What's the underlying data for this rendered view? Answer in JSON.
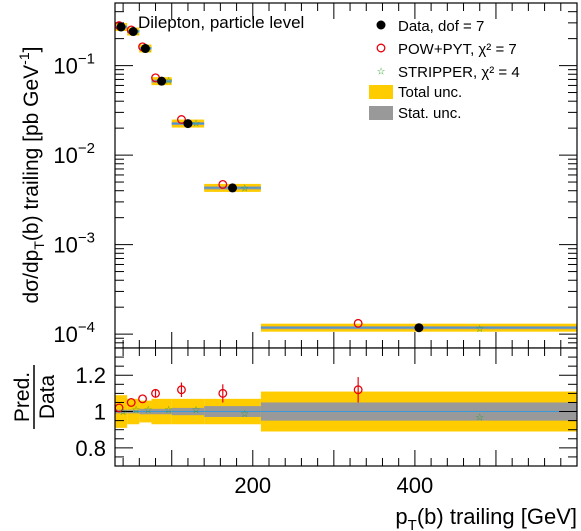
{
  "chart_data": {
    "type": "scatter",
    "title": "Dilepton, particle level",
    "bins": [
      {
        "lo": 30,
        "hi": 45
      },
      {
        "lo": 45,
        "hi": 60
      },
      {
        "lo": 60,
        "hi": 75
      },
      {
        "lo": 75,
        "hi": 100
      },
      {
        "lo": 100,
        "hi": 140
      },
      {
        "lo": 140,
        "hi": 210
      },
      {
        "lo": 210,
        "hi": 600
      }
    ],
    "top_panel": {
      "ylabel": "dσ/dp_T(b) trailing [pb GeV^-1]",
      "yscale": "log",
      "ylim": [
        7e-05,
        0.5
      ],
      "yticks": [
        {
          "value": 0.1,
          "base": "10",
          "exp": "−1"
        },
        {
          "value": 0.01,
          "base": "10",
          "exp": "−2"
        },
        {
          "value": 0.001,
          "base": "10",
          "exp": "−3"
        },
        {
          "value": 0.0001,
          "base": "10",
          "exp": "−4"
        }
      ],
      "series": [
        {
          "name": "Data, dof = 7",
          "marker": "filled-circle",
          "color": "#000000",
          "x": [
            37.5,
            52.5,
            67.5,
            87.5,
            120,
            175,
            405
          ],
          "y": [
            0.27,
            0.24,
            0.155,
            0.067,
            0.0225,
            0.0043,
            0.000118
          ]
        },
        {
          "name": "POW+PYT, χ² = 7",
          "marker": "open-circle",
          "color": "#e8000b",
          "x": [
            35,
            50,
            64,
            80,
            112,
            163,
            330
          ],
          "y": [
            0.28,
            0.25,
            0.162,
            0.073,
            0.025,
            0.0047,
            0.000132
          ]
        },
        {
          "name": "STRIPPER, χ² = 4",
          "marker": "star",
          "color": "#22a022",
          "x": [
            40,
            56,
            71,
            96,
            130,
            190,
            480
          ],
          "y": [
            0.27,
            0.24,
            0.155,
            0.068,
            0.0228,
            0.0043,
            0.000115
          ]
        }
      ],
      "legend_extra": [
        {
          "name": "Total unc.",
          "color": "#ffcc00"
        },
        {
          "name": "Stat. unc.",
          "color": "#999999"
        }
      ]
    },
    "ratio_panel": {
      "ylabel_top": "Pred.",
      "ylabel_bottom": "Data",
      "ylim": [
        0.7,
        1.35
      ],
      "yticks": [
        0.8,
        1,
        1.2
      ],
      "yticklabels": [
        "0.8",
        "1",
        "1.2"
      ],
      "total_unc": [
        0.09,
        0.07,
        0.06,
        0.07,
        0.07,
        0.07,
        0.11
      ],
      "stat_unc": [
        0.01,
        0.01,
        0.015,
        0.015,
        0.02,
        0.03,
        0.05
      ],
      "series": [
        {
          "name": "POW+PYT",
          "marker": "open-circle",
          "color": "#e8000b",
          "x": [
            35,
            50,
            64,
            80,
            112,
            163,
            330
          ],
          "y": [
            1.02,
            1.05,
            1.07,
            1.1,
            1.12,
            1.1,
            1.12
          ],
          "err": [
            0,
            0,
            0,
            0.02,
            0.04,
            0.05,
            0.07
          ]
        },
        {
          "name": "STRIPPER",
          "marker": "star",
          "color": "#22a022",
          "x": [
            40,
            56,
            71,
            96,
            130,
            190,
            480
          ],
          "y": [
            1.0,
            1.01,
            1.01,
            1.01,
            1.01,
            0.99,
            0.97
          ],
          "err": [
            0,
            0,
            0,
            0,
            0,
            0,
            0
          ]
        }
      ]
    },
    "xaxis": {
      "label": "p_T(b) trailing [GeV]",
      "xlim": [
        30,
        600
      ],
      "ticklabels": [
        {
          "value": 200,
          "text": "200"
        },
        {
          "value": 400,
          "text": "400"
        }
      ]
    }
  }
}
